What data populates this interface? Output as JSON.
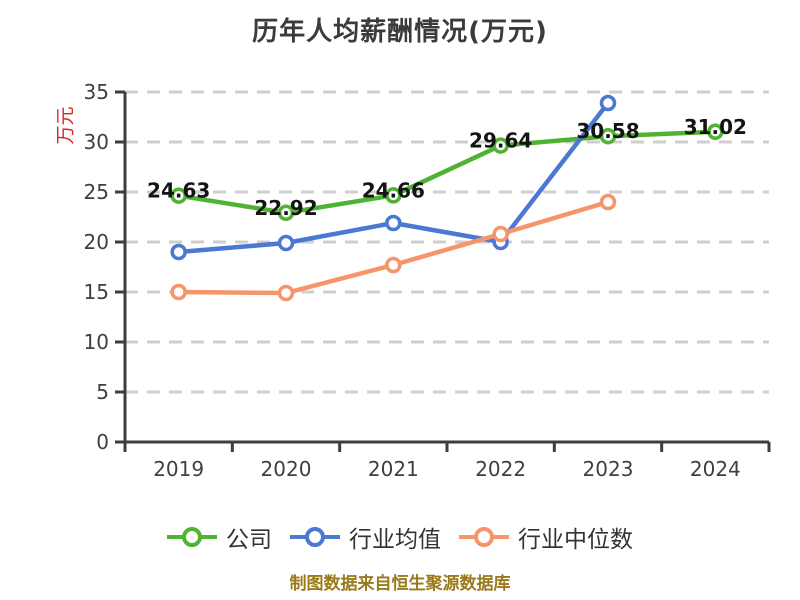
{
  "title": "历年人均薪酬情况(万元)",
  "y_axis_name": "万元",
  "footer": "制图数据来自恒生聚源数据库",
  "colors": {
    "company": "#4fb232",
    "industry_avg": "#4b78d2",
    "industry_median": "#f6946a",
    "grid": "#cfcfcf",
    "axis": "#3d3d3d",
    "tick_label": "#3f3f3f",
    "value_label": "#141414",
    "title_text": "#3b3b3b",
    "y_name_red": "#e02222",
    "footer_gold": "#9a7a1a"
  },
  "chart_data": {
    "type": "line",
    "title": "历年人均薪酬情况(万元)",
    "categories": [
      "2019",
      "2020",
      "2021",
      "2022",
      "2023",
      "2024"
    ],
    "series": [
      {
        "name": "公司",
        "color": "#4fb232",
        "values": [
          24.63,
          22.92,
          24.66,
          29.64,
          30.58,
          31.02
        ],
        "show_labels": true,
        "labels": [
          "24.63",
          "22.92",
          "24.66",
          "29.64",
          "30.58",
          "31.02"
        ]
      },
      {
        "name": "行业均值",
        "color": "#4b78d2",
        "values": [
          19.0,
          19.9,
          21.9,
          20.0,
          33.9,
          null
        ],
        "show_labels": false
      },
      {
        "name": "行业中位数",
        "color": "#f6946a",
        "values": [
          15.0,
          14.9,
          17.7,
          20.8,
          24.0,
          null
        ],
        "show_labels": false
      }
    ],
    "xlabel": "",
    "ylabel": "万元",
    "ylim": [
      0,
      35
    ],
    "y_ticks": [
      0,
      5,
      10,
      15,
      20,
      25,
      30,
      35
    ],
    "grid": "horizontal-dashed",
    "legend_position": "bottom",
    "marker": "circle-white-fill"
  }
}
